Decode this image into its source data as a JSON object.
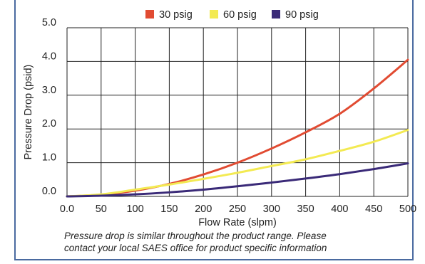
{
  "chart_data": {
    "type": "line",
    "title": "",
    "xlabel": "Flow Rate (slpm)",
    "ylabel": "Pressure Drop (psid)",
    "xlim": [
      0,
      500
    ],
    "ylim": [
      0,
      5
    ],
    "x_ticks": [
      0,
      50,
      100,
      150,
      200,
      250,
      300,
      350,
      400,
      450,
      500
    ],
    "x_tick_labels": [
      "0.0",
      "50",
      "100",
      "150",
      "200",
      "250",
      "300",
      "350",
      "400",
      "450",
      "500"
    ],
    "y_ticks": [
      0,
      1,
      2,
      3,
      4,
      5
    ],
    "y_tick_labels": [
      "0.0",
      "1.0",
      "2.0",
      "3.0",
      "4.0",
      "5.0"
    ],
    "grid": true,
    "legend_position": "top",
    "series": [
      {
        "name": "30 psig",
        "color": "#e14b32",
        "x": [
          0,
          50,
          100,
          150,
          200,
          250,
          300,
          350,
          400,
          450,
          500
        ],
        "y": [
          0,
          0.05,
          0.17,
          0.37,
          0.65,
          1.0,
          1.42,
          1.9,
          2.45,
          3.2,
          4.05
        ]
      },
      {
        "name": "60 psig",
        "color": "#f3ea52",
        "x": [
          0,
          50,
          100,
          150,
          200,
          250,
          300,
          350,
          400,
          450,
          500
        ],
        "y": [
          0,
          0.06,
          0.2,
          0.35,
          0.52,
          0.7,
          0.9,
          1.1,
          1.35,
          1.62,
          1.97
        ]
      },
      {
        "name": "90 psig",
        "color": "#3a2a78",
        "x": [
          0,
          50,
          100,
          150,
          200,
          250,
          300,
          350,
          400,
          450,
          500
        ],
        "y": [
          0,
          0.02,
          0.06,
          0.12,
          0.2,
          0.3,
          0.41,
          0.53,
          0.66,
          0.81,
          0.98
        ]
      }
    ],
    "caption_lines": [
      "Pressure drop is similar throughout the product range. Please",
      "contact your local SAES office for product specific information"
    ]
  }
}
